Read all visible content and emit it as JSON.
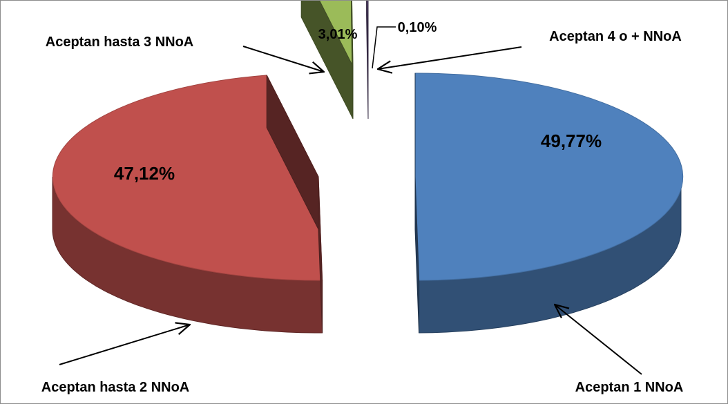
{
  "chart_data": {
    "type": "pie",
    "style": "3d-exploded",
    "title": "",
    "slices": [
      {
        "name": "Aceptan 1 NNoA",
        "value": 49.77,
        "label": "49,77%",
        "color": "#4f81bd"
      },
      {
        "name": "Aceptan hasta 2 NNoA",
        "value": 47.12,
        "label": "47,12%",
        "color": "#c0504d"
      },
      {
        "name": "Aceptan hasta 3 NNoA",
        "value": 3.01,
        "label": "3,01%",
        "color": "#9bbb59"
      },
      {
        "name": "Aceptan 4 o + NNoA",
        "value": 0.1,
        "label": "0,10%",
        "color": "#8064a2"
      }
    ],
    "legend": "none"
  }
}
